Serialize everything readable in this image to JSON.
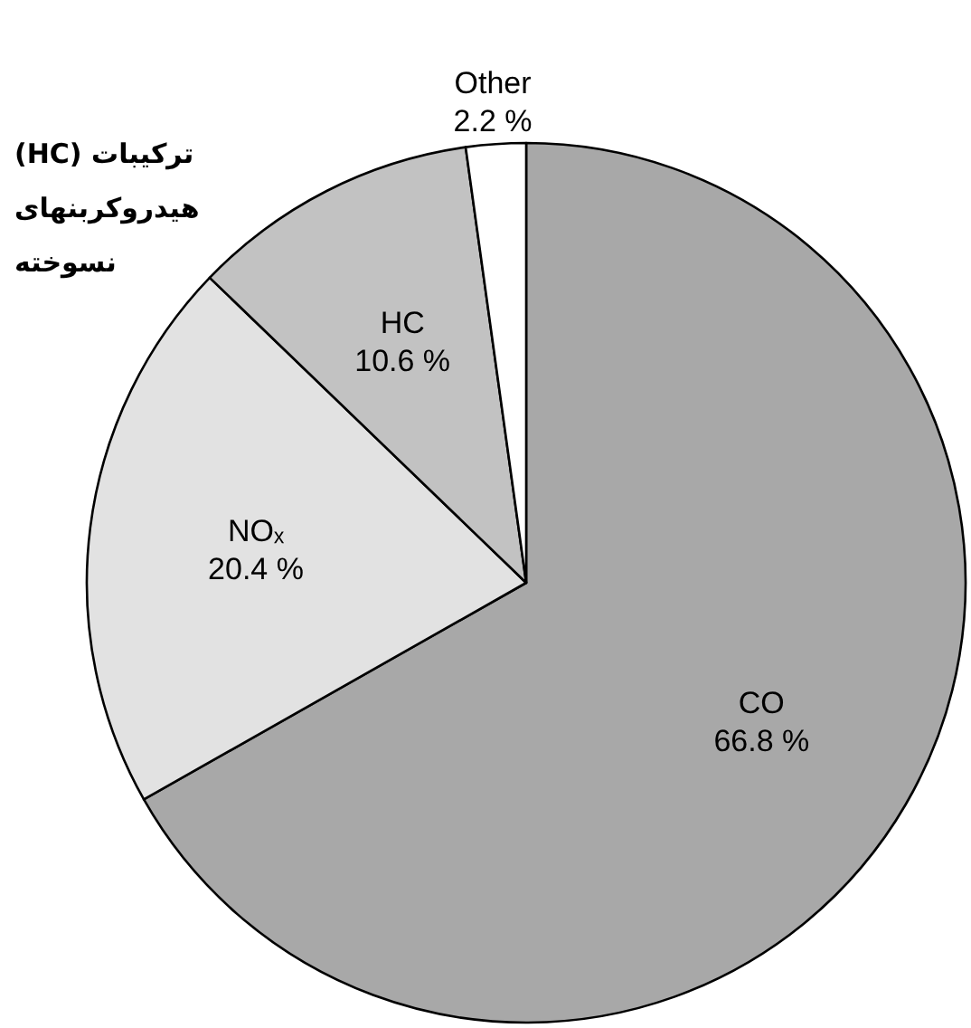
{
  "chart_data": {
    "type": "pie",
    "categories": [
      "CO",
      "NOₓ",
      "HC",
      "Other"
    ],
    "values": [
      66.8,
      20.4,
      10.6,
      2.2
    ],
    "value_labels": [
      "66.8 %",
      "20.4 %",
      "10.6 %",
      "2.2 %"
    ],
    "colors": [
      "#a8a8a8",
      "#e2e2e2",
      "#c2c2c2",
      "#ffffff"
    ],
    "annotations": [
      "ترکیبات (HC)\nهیدروکربنهای\nنسوخته"
    ]
  }
}
